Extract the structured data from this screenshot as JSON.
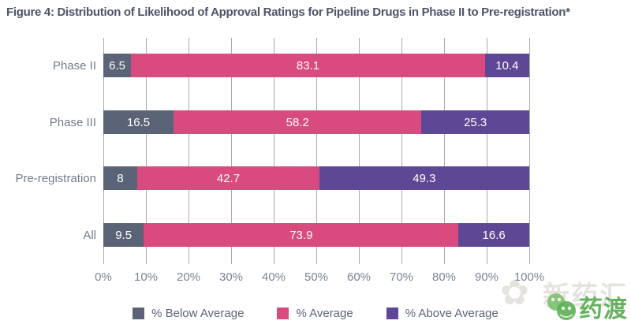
{
  "chart_data": {
    "type": "bar",
    "orientation": "horizontal-stacked",
    "title": "Figure 4: Distribution of Likelihood of Approval Ratings for Pipeline Drugs in Phase II to Pre-registration*",
    "categories": [
      "Phase II",
      "Phase III",
      "Pre-registration",
      "All"
    ],
    "series": [
      {
        "name": "% Below Average",
        "color": "#5b6476",
        "values": [
          6.5,
          16.5,
          8,
          9.5
        ]
      },
      {
        "name": "% Average",
        "color": "#d94b7f",
        "values": [
          83.1,
          58.2,
          42.7,
          73.9
        ]
      },
      {
        "name": "% Above Average",
        "color": "#5e4794",
        "values": [
          10.4,
          25.3,
          49.3,
          16.6
        ]
      }
    ],
    "xlim": [
      0,
      100
    ],
    "xticks": [
      "0%",
      "10%",
      "20%",
      "30%",
      "40%",
      "50%",
      "60%",
      "70%",
      "80%",
      "90%",
      "100%"
    ],
    "grid": "vertical",
    "legend_position": "bottom",
    "value_labels": "inside-white"
  },
  "colors": {
    "title_text": "#4d5468",
    "axis_text": "#7c8396",
    "category_text": "#747b8e",
    "legend_text": "#5d6478",
    "gridline": "#a8aaad",
    "watermark_green": "#63b25e"
  },
  "watermark": {
    "background_text": "新药汇",
    "brand_text": "药渡"
  }
}
